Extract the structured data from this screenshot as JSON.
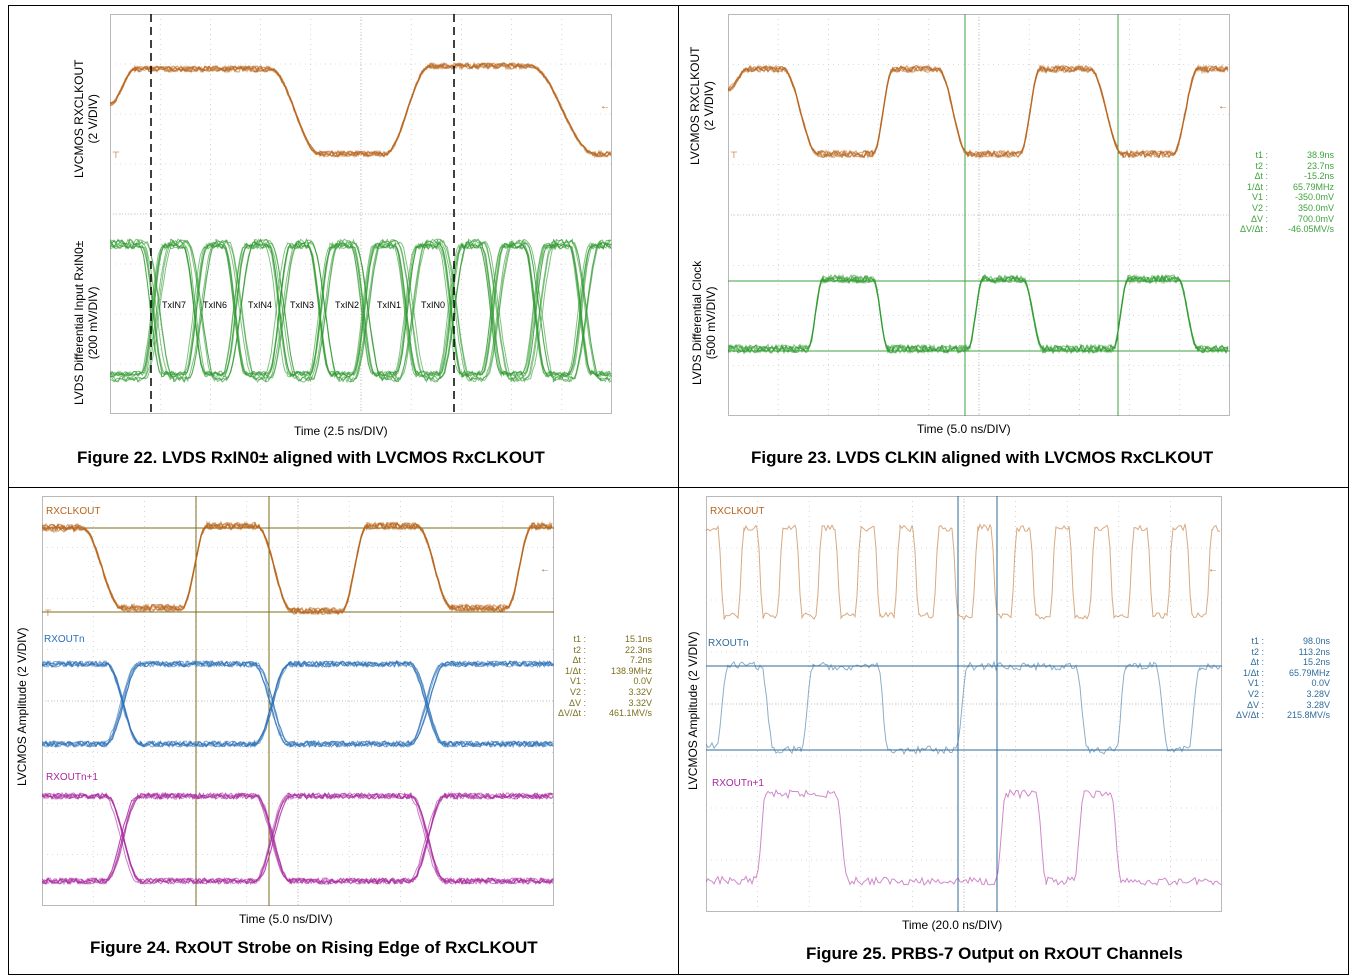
{
  "colors": {
    "orange": "#b8641c",
    "green": "#2f9a2f",
    "blue": "#2a6fb8",
    "magenta": "#a8289e",
    "scope_grid": "#b9b9b9",
    "cursor_green": "#3da33d",
    "cursor_olive": "#7c6f1b",
    "cursor_blue": "#2e6b9a"
  },
  "fig22": {
    "ylabel_top": "LVCMOS RXCLKOUT\n(2 V/DIV)",
    "ylabel_bottom": "LVDS Differential Input RxIN0±\n(200 mV/DIV)",
    "xlabel": "Time (2.5 ns/DIV)",
    "caption": "Figure 22. LVDS RxIN0± aligned with LVCMOS RxCLKOUT",
    "slots": [
      "TxIN7",
      "TxIN6",
      "TxIN4",
      "TxIN3",
      "TxIN2",
      "TxIN1",
      "TxIN0"
    ]
  },
  "fig23": {
    "ylabel_top": "LVCMOS RXCLKOUT\n(2 V/DIV)",
    "ylabel_bottom": "LVDS Differential Clock\n(500 mV/DIV)",
    "xlabel": "Time (5.0 ns/DIV)",
    "caption": "Figure 23. LVDS CLKIN aligned with LVCMOS RxCLKOUT",
    "cursors": [
      {
        "label": "t1 :",
        "value": "38.9ns"
      },
      {
        "label": "t2 :",
        "value": "23.7ns"
      },
      {
        "label": "Δt :",
        "value": "-15.2ns"
      },
      {
        "label": "1/Δt :",
        "value": "65.79MHz"
      },
      {
        "label": "V1 :",
        "value": "-350.0mV"
      },
      {
        "label": "V2 :",
        "value": "350.0mV"
      },
      {
        "label": "ΔV :",
        "value": "700.0mV"
      },
      {
        "label": "ΔV/Δt :",
        "value": "-46.05MV/s"
      }
    ]
  },
  "fig24": {
    "ylabel": "LVCMOS Amplitude (2 V/DIV)",
    "xlabel": "Time (5.0 ns/DIV)",
    "caption": "Figure 24. RxOUT Strobe on Rising Edge of RxCLKOUT",
    "tags": [
      "RXCLKOUT",
      "RXOUTn",
      "RXOUTn+1"
    ],
    "cursors": [
      {
        "label": "t1 :",
        "value": "15.1ns"
      },
      {
        "label": "t2 :",
        "value": "22.3ns"
      },
      {
        "label": "Δt :",
        "value": "7.2ns"
      },
      {
        "label": "1/Δt :",
        "value": "138.9MHz"
      },
      {
        "label": "V1 :",
        "value": "0.0V"
      },
      {
        "label": "V2 :",
        "value": "3.32V"
      },
      {
        "label": "ΔV :",
        "value": "3.32V"
      },
      {
        "label": "ΔV/Δt :",
        "value": "461.1MV/s"
      }
    ]
  },
  "fig25": {
    "ylabel": "LVCMOS Amplitude (2 V/DIV)",
    "xlabel": "Time (20.0 ns/DIV)",
    "caption": "Figure 25. PRBS-7 Output on RxOUT Channels",
    "tags": [
      "RXCLKOUT",
      "RXOUTn",
      "RXOUTn+1"
    ],
    "cursors": [
      {
        "label": "t1 :",
        "value": "98.0ns"
      },
      {
        "label": "t2 :",
        "value": "113.2ns"
      },
      {
        "label": "Δt :",
        "value": "15.2ns"
      },
      {
        "label": "1/Δt :",
        "value": "65.79MHz"
      },
      {
        "label": "V1 :",
        "value": "0.0V"
      },
      {
        "label": "V2 :",
        "value": "3.28V"
      },
      {
        "label": "ΔV :",
        "value": "3.28V"
      },
      {
        "label": "ΔV/Δt :",
        "value": "215.8MV/s"
      }
    ]
  }
}
